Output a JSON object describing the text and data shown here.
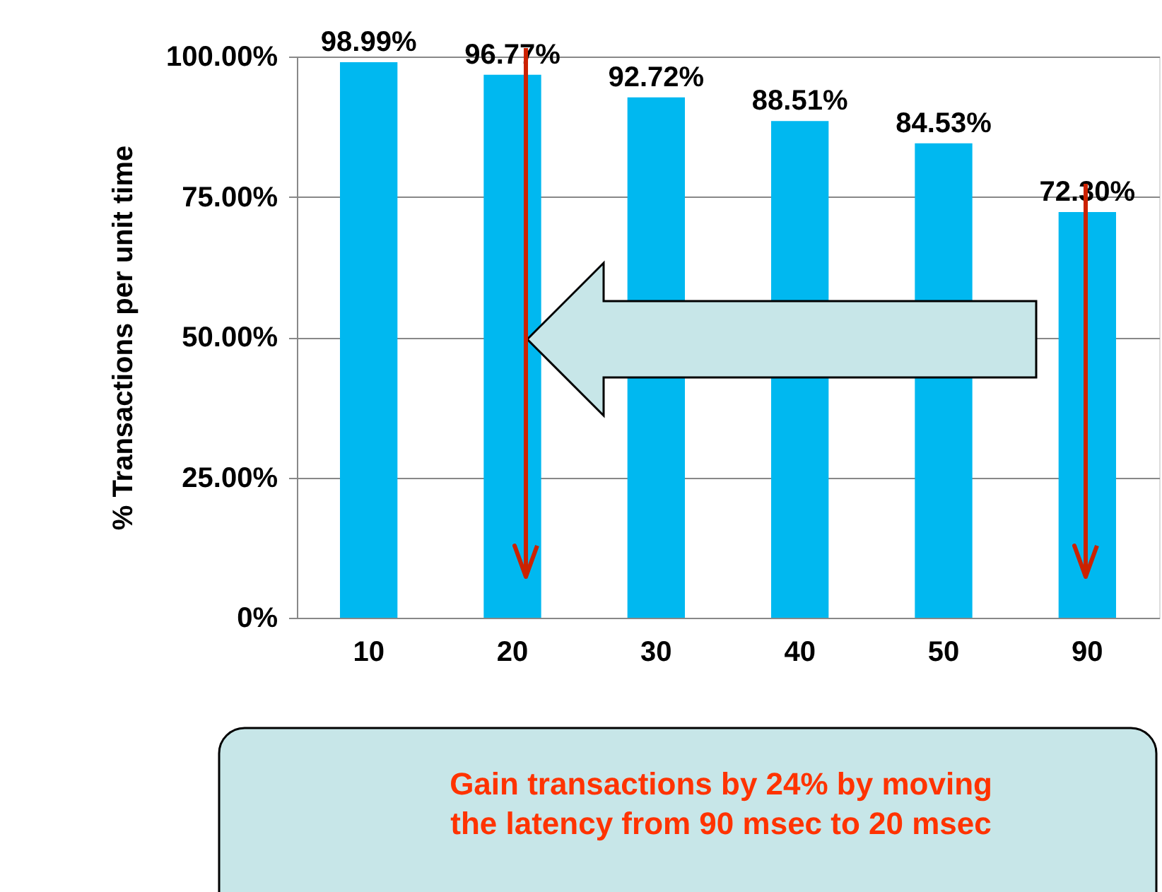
{
  "chart_data": {
    "type": "bar",
    "ylabel": "% Transactions per unit time",
    "categories": [
      "10",
      "20",
      "30",
      "40",
      "50",
      "90"
    ],
    "values": [
      98.99,
      96.77,
      92.72,
      88.51,
      84.53,
      72.3
    ],
    "value_labels": [
      "98.99%",
      "96.77%",
      "92.72%",
      "88.51%",
      "84.53%",
      "72.30%"
    ],
    "color": "#00b8f0",
    "ylim": [
      0,
      100
    ],
    "yticks": [
      {
        "value": 0,
        "label": "0%"
      },
      {
        "value": 25,
        "label": "25.00%"
      },
      {
        "value": 50,
        "label": "50.00%"
      },
      {
        "value": 75,
        "label": "75.00%"
      },
      {
        "value": 100,
        "label": "100.00%"
      }
    ],
    "grid": "y",
    "annotations": [
      "Gain transactions by 24% by moving the latency from 90 msec to 20 msec"
    ]
  }
}
